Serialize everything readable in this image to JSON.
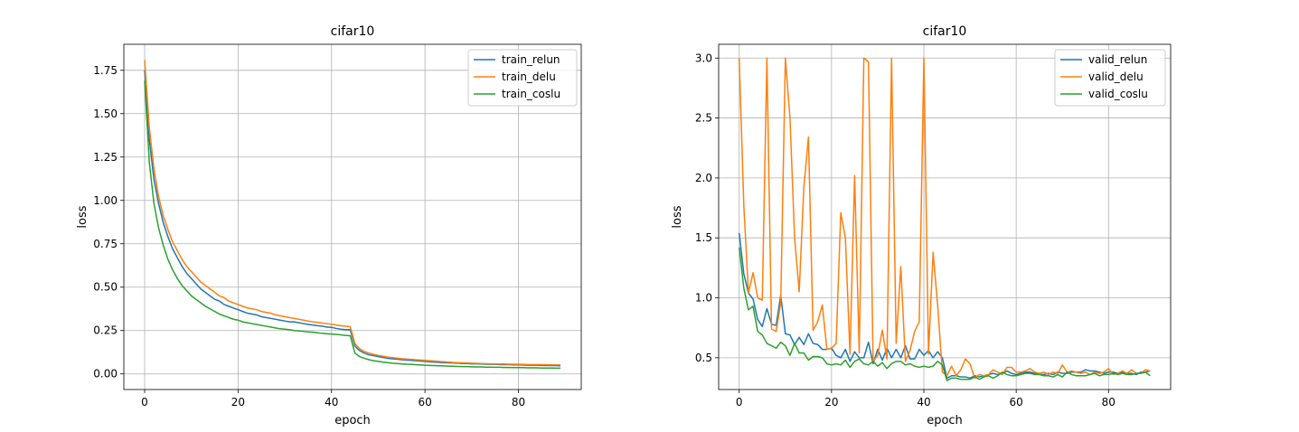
{
  "chart_data": [
    {
      "type": "line",
      "title": "cifar10",
      "xlabel": "epoch",
      "ylabel": "loss",
      "xlim": [
        -4.45,
        93.45
      ],
      "ylim": [
        -0.09,
        1.9
      ],
      "xticks": [
        0,
        20,
        40,
        60,
        80
      ],
      "yticks": [
        0.0,
        0.25,
        0.5,
        0.75,
        1.0,
        1.25,
        1.5,
        1.75
      ],
      "ytick_labels": [
        "0.00",
        "0.25",
        "0.50",
        "0.75",
        "1.00",
        "1.25",
        "1.50",
        "1.75"
      ],
      "grid": true,
      "legend": "top-right",
      "x": [
        0,
        1,
        2,
        3,
        4,
        5,
        6,
        7,
        8,
        9,
        10,
        11,
        12,
        13,
        14,
        15,
        16,
        17,
        18,
        19,
        20,
        21,
        22,
        23,
        24,
        25,
        26,
        27,
        28,
        29,
        30,
        31,
        32,
        33,
        34,
        35,
        36,
        37,
        38,
        39,
        40,
        41,
        42,
        43,
        44,
        45,
        46,
        47,
        48,
        49,
        50,
        51,
        52,
        53,
        54,
        55,
        56,
        57,
        58,
        59,
        60,
        61,
        62,
        63,
        64,
        65,
        66,
        67,
        68,
        69,
        70,
        71,
        72,
        73,
        74,
        75,
        76,
        77,
        78,
        79,
        80,
        81,
        82,
        83,
        84,
        85,
        86,
        87,
        88,
        89
      ],
      "series": [
        {
          "name": "train_relun",
          "color": "#1f77b4",
          "values": [
            1.75,
            1.35,
            1.12,
            0.98,
            0.87,
            0.79,
            0.72,
            0.67,
            0.62,
            0.58,
            0.55,
            0.52,
            0.49,
            0.47,
            0.45,
            0.43,
            0.42,
            0.4,
            0.39,
            0.38,
            0.37,
            0.36,
            0.35,
            0.345,
            0.34,
            0.33,
            0.325,
            0.32,
            0.315,
            0.31,
            0.305,
            0.3,
            0.3,
            0.295,
            0.29,
            0.285,
            0.282,
            0.278,
            0.275,
            0.27,
            0.268,
            0.262,
            0.258,
            0.255,
            0.255,
            0.16,
            0.135,
            0.12,
            0.11,
            0.105,
            0.1,
            0.095,
            0.09,
            0.087,
            0.085,
            0.082,
            0.08,
            0.078,
            0.076,
            0.074,
            0.072,
            0.07,
            0.068,
            0.066,
            0.065,
            0.064,
            0.063,
            0.062,
            0.06,
            0.06,
            0.058,
            0.058,
            0.057,
            0.056,
            0.055,
            0.055,
            0.054,
            0.053,
            0.053,
            0.052,
            0.052,
            0.051,
            0.05,
            0.05,
            0.05,
            0.049,
            0.049,
            0.048,
            0.048,
            0.047
          ]
        },
        {
          "name": "train_delu",
          "color": "#ff7f0e",
          "values": [
            1.81,
            1.42,
            1.18,
            1.02,
            0.91,
            0.83,
            0.76,
            0.71,
            0.66,
            0.62,
            0.59,
            0.56,
            0.53,
            0.51,
            0.49,
            0.47,
            0.45,
            0.44,
            0.42,
            0.41,
            0.4,
            0.39,
            0.38,
            0.375,
            0.37,
            0.36,
            0.355,
            0.35,
            0.34,
            0.335,
            0.33,
            0.325,
            0.32,
            0.315,
            0.31,
            0.305,
            0.3,
            0.297,
            0.293,
            0.29,
            0.286,
            0.282,
            0.278,
            0.275,
            0.272,
            0.175,
            0.145,
            0.13,
            0.12,
            0.113,
            0.107,
            0.102,
            0.097,
            0.094,
            0.091,
            0.088,
            0.086,
            0.084,
            0.082,
            0.08,
            0.078,
            0.076,
            0.074,
            0.072,
            0.07,
            0.068,
            0.066,
            0.065,
            0.064,
            0.063,
            0.062,
            0.061,
            0.06,
            0.059,
            0.058,
            0.058,
            0.057,
            0.057,
            0.056,
            0.056,
            0.055,
            0.055,
            0.054,
            0.054,
            0.054,
            0.053,
            0.053,
            0.052,
            0.052,
            0.052
          ]
        },
        {
          "name": "train_coslu",
          "color": "#2ca02c",
          "values": [
            1.69,
            1.22,
            0.98,
            0.84,
            0.74,
            0.66,
            0.6,
            0.55,
            0.51,
            0.48,
            0.45,
            0.43,
            0.41,
            0.39,
            0.375,
            0.36,
            0.345,
            0.335,
            0.325,
            0.315,
            0.31,
            0.3,
            0.295,
            0.29,
            0.285,
            0.28,
            0.275,
            0.27,
            0.265,
            0.26,
            0.258,
            0.255,
            0.25,
            0.248,
            0.245,
            0.242,
            0.24,
            0.237,
            0.234,
            0.232,
            0.23,
            0.228,
            0.225,
            0.222,
            0.22,
            0.12,
            0.1,
            0.09,
            0.082,
            0.076,
            0.072,
            0.068,
            0.065,
            0.062,
            0.06,
            0.058,
            0.056,
            0.055,
            0.053,
            0.052,
            0.05,
            0.049,
            0.048,
            0.047,
            0.046,
            0.045,
            0.044,
            0.043,
            0.042,
            0.042,
            0.041,
            0.04,
            0.04,
            0.039,
            0.039,
            0.038,
            0.038,
            0.037,
            0.037,
            0.036,
            0.036,
            0.036,
            0.035,
            0.035,
            0.035,
            0.034,
            0.034,
            0.034,
            0.033,
            0.033
          ]
        }
      ]
    },
    {
      "type": "line",
      "title": "cifar10",
      "xlabel": "epoch",
      "ylabel": "loss",
      "xlim": [
        -4.45,
        93.45
      ],
      "ylim": [
        0.235,
        3.115
      ],
      "xticks": [
        0,
        20,
        40,
        60,
        80
      ],
      "yticks": [
        0.5,
        1.0,
        1.5,
        2.0,
        2.5,
        3.0
      ],
      "ytick_labels": [
        "0.5",
        "1.0",
        "1.5",
        "2.0",
        "2.5",
        "3.0"
      ],
      "grid": true,
      "legend": "top-right",
      "x": [
        0,
        1,
        2,
        3,
        4,
        5,
        6,
        7,
        8,
        9,
        10,
        11,
        12,
        13,
        14,
        15,
        16,
        17,
        18,
        19,
        20,
        21,
        22,
        23,
        24,
        25,
        26,
        27,
        28,
        29,
        30,
        31,
        32,
        33,
        34,
        35,
        36,
        37,
        38,
        39,
        40,
        41,
        42,
        43,
        44,
        45,
        46,
        47,
        48,
        49,
        50,
        51,
        52,
        53,
        54,
        55,
        56,
        57,
        58,
        59,
        60,
        61,
        62,
        63,
        64,
        65,
        66,
        67,
        68,
        69,
        70,
        71,
        72,
        73,
        74,
        75,
        76,
        77,
        78,
        79,
        80,
        81,
        82,
        83,
        84,
        85,
        86,
        87,
        88,
        89
      ],
      "series": [
        {
          "name": "valid_relun",
          "color": "#1f77b4",
          "values": [
            1.54,
            1.2,
            1.04,
            0.99,
            0.82,
            0.76,
            0.91,
            0.78,
            0.77,
            1.02,
            0.7,
            0.69,
            0.61,
            0.67,
            0.61,
            0.7,
            0.62,
            0.61,
            0.57,
            0.57,
            0.58,
            0.52,
            0.5,
            0.57,
            0.47,
            0.55,
            0.5,
            0.5,
            0.63,
            0.45,
            0.57,
            0.48,
            0.58,
            0.5,
            0.57,
            0.5,
            0.6,
            0.49,
            0.49,
            0.57,
            0.52,
            0.56,
            0.5,
            0.55,
            0.5,
            0.33,
            0.35,
            0.35,
            0.34,
            0.34,
            0.33,
            0.35,
            0.34,
            0.35,
            0.36,
            0.37,
            0.36,
            0.37,
            0.39,
            0.37,
            0.36,
            0.37,
            0.38,
            0.38,
            0.37,
            0.36,
            0.36,
            0.37,
            0.36,
            0.38,
            0.37,
            0.37,
            0.38,
            0.38,
            0.38,
            0.4,
            0.39,
            0.39,
            0.38,
            0.37,
            0.38,
            0.38,
            0.37,
            0.38,
            0.37,
            0.37,
            0.36,
            0.38,
            0.38,
            0.39
          ]
        },
        {
          "name": "valid_delu",
          "color": "#ff7f0e",
          "values": [
            3.0,
            1.77,
            1.04,
            1.21,
            1.0,
            0.98,
            3.0,
            0.74,
            0.72,
            0.96,
            3.0,
            2.5,
            1.5,
            1.05,
            1.92,
            2.34,
            0.73,
            0.8,
            0.94,
            0.57,
            0.58,
            0.62,
            1.71,
            1.5,
            0.53,
            2.02,
            0.54,
            3.0,
            2.97,
            0.47,
            0.52,
            0.73,
            0.49,
            3.0,
            0.62,
            1.26,
            0.47,
            0.56,
            0.72,
            0.8,
            3.0,
            0.53,
            1.38,
            0.93,
            0.38,
            0.35,
            0.43,
            0.35,
            0.4,
            0.49,
            0.45,
            0.33,
            0.36,
            0.35,
            0.36,
            0.4,
            0.38,
            0.36,
            0.42,
            0.42,
            0.38,
            0.38,
            0.39,
            0.41,
            0.38,
            0.37,
            0.38,
            0.36,
            0.38,
            0.37,
            0.44,
            0.38,
            0.39,
            0.38,
            0.37,
            0.38,
            0.36,
            0.38,
            0.37,
            0.38,
            0.41,
            0.36,
            0.37,
            0.39,
            0.37,
            0.4,
            0.37,
            0.37,
            0.4,
            0.39
          ]
        },
        {
          "name": "valid_coslu",
          "color": "#2ca02c",
          "values": [
            1.42,
            1.08,
            0.9,
            0.93,
            0.72,
            0.69,
            0.62,
            0.6,
            0.58,
            0.63,
            0.6,
            0.52,
            0.62,
            0.54,
            0.54,
            0.48,
            0.51,
            0.51,
            0.5,
            0.45,
            0.44,
            0.45,
            0.44,
            0.48,
            0.42,
            0.47,
            0.49,
            0.45,
            0.44,
            0.47,
            0.43,
            0.46,
            0.41,
            0.45,
            0.47,
            0.47,
            0.44,
            0.45,
            0.43,
            0.42,
            0.43,
            0.42,
            0.43,
            0.47,
            0.44,
            0.31,
            0.33,
            0.33,
            0.32,
            0.32,
            0.32,
            0.34,
            0.32,
            0.34,
            0.35,
            0.33,
            0.35,
            0.38,
            0.36,
            0.35,
            0.35,
            0.36,
            0.37,
            0.37,
            0.36,
            0.36,
            0.35,
            0.35,
            0.34,
            0.36,
            0.34,
            0.38,
            0.36,
            0.35,
            0.35,
            0.35,
            0.36,
            0.37,
            0.35,
            0.36,
            0.36,
            0.37,
            0.36,
            0.37,
            0.36,
            0.36,
            0.37,
            0.37,
            0.38,
            0.35
          ]
        }
      ]
    }
  ]
}
